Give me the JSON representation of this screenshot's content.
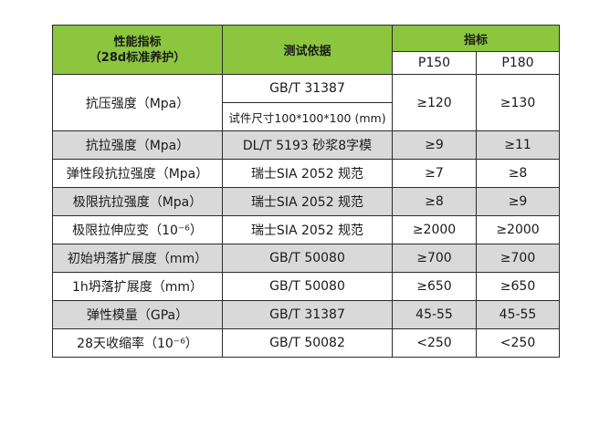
{
  "header": {
    "col1_line1": "性能指标",
    "col1_line2": "（28d标准养护）",
    "col2": "测试依据",
    "col3": "指标",
    "sub_p150": "P150",
    "sub_p180": "P180"
  },
  "rows": [
    {
      "name": "抗压强度（Mpa）",
      "basis": "GB/T 31387",
      "basis2": "试件尺寸100*100*100 (mm)",
      "p150": "≥120",
      "p180": "≥130"
    },
    {
      "name": "抗拉强度（Mpa）",
      "basis": "DL/T 5193 砂浆8字模",
      "p150": "≥9",
      "p180": "≥11"
    },
    {
      "name": "弹性段抗拉强度（Mpa）",
      "basis": "瑞士SIA 2052 规范",
      "p150": "≥7",
      "p180": "≥8"
    },
    {
      "name": "极限抗拉强度（Mpa）",
      "basis": "瑞士SIA 2052 规范",
      "p150": "≥8",
      "p180": "≥9"
    },
    {
      "name": "极限拉伸应变（10⁻⁶）",
      "basis": "瑞士SIA 2052 规范",
      "p150": "≥2000",
      "p180": "≥2000"
    },
    {
      "name": "初始坍落扩展度（mm）",
      "basis": "GB/T 50080",
      "p150": "≥700",
      "p180": "≥700"
    },
    {
      "name": "1h坍落扩展度（mm）",
      "basis": "GB/T 50080",
      "p150": "≥650",
      "p180": "≥650"
    },
    {
      "name": "弹性模量（GPa）",
      "basis": "GB/T 31387",
      "p150": "45-55",
      "p180": "45-55"
    },
    {
      "name": "28天收缩率（10⁻⁶）",
      "basis": "GB/T 50082",
      "p150": "<250",
      "p180": "<250"
    }
  ]
}
